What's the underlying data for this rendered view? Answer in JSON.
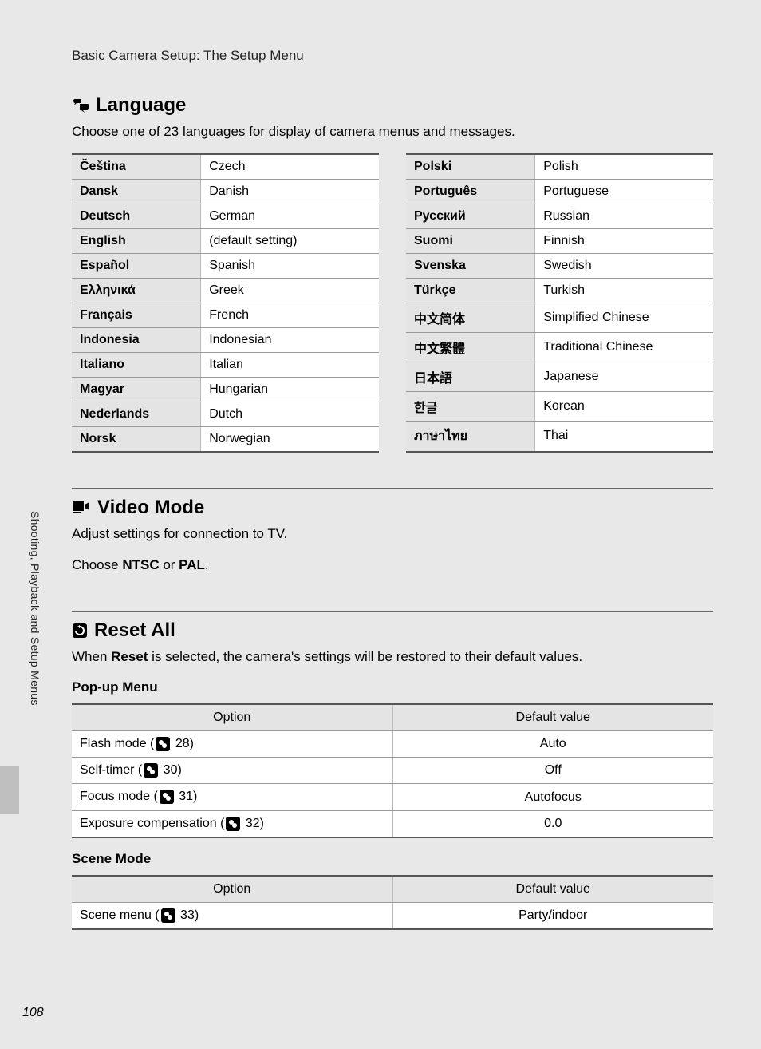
{
  "breadcrumb": "Basic Camera Setup: The Setup Menu",
  "side_label": "Shooting, Playback and Setup Menus",
  "page_number": "108",
  "language": {
    "heading": "Language",
    "desc": "Choose one of 23 languages for display of camera menus and messages.",
    "left": [
      {
        "native": "Čeština",
        "english": "Czech"
      },
      {
        "native": "Dansk",
        "english": "Danish"
      },
      {
        "native": "Deutsch",
        "english": "German"
      },
      {
        "native": "English",
        "english": "(default setting)"
      },
      {
        "native": "Español",
        "english": "Spanish"
      },
      {
        "native": "Ελληνικά",
        "english": "Greek"
      },
      {
        "native": "Français",
        "english": "French"
      },
      {
        "native": "Indonesia",
        "english": "Indonesian"
      },
      {
        "native": "Italiano",
        "english": "Italian"
      },
      {
        "native": "Magyar",
        "english": "Hungarian"
      },
      {
        "native": "Nederlands",
        "english": "Dutch"
      },
      {
        "native": "Norsk",
        "english": "Norwegian"
      }
    ],
    "right": [
      {
        "native": "Polski",
        "english": "Polish"
      },
      {
        "native": "Português",
        "english": "Portuguese"
      },
      {
        "native": "Русский",
        "english": "Russian"
      },
      {
        "native": "Suomi",
        "english": "Finnish"
      },
      {
        "native": "Svenska",
        "english": "Swedish"
      },
      {
        "native": "Türkçe",
        "english": "Turkish"
      },
      {
        "native": "中文简体",
        "english": "Simplified Chinese"
      },
      {
        "native": "中文繁體",
        "english": "Traditional Chinese"
      },
      {
        "native": "日本語",
        "english": "Japanese"
      },
      {
        "native": "한글",
        "english": "Korean"
      },
      {
        "native": "ภาษาไทย",
        "english": "Thai"
      }
    ]
  },
  "video_mode": {
    "heading": "Video Mode",
    "line1": "Adjust settings for connection to TV.",
    "line2_pre": "Choose ",
    "opt1": "NTSC",
    "or": " or ",
    "opt2": "PAL",
    "period": "."
  },
  "reset_all": {
    "heading": "Reset All",
    "desc_pre": "When ",
    "desc_bold": "Reset",
    "desc_post": " is selected, the camera's settings will be restored to their default values."
  },
  "popup_menu": {
    "title": "Pop-up Menu",
    "col_option": "Option",
    "col_default": "Default value",
    "rows": [
      {
        "label": "Flash mode (",
        "ref": "28",
        "close": ")",
        "value": "Auto"
      },
      {
        "label": "Self-timer (",
        "ref": "30",
        "close": ")",
        "value": "Off"
      },
      {
        "label": "Focus mode (",
        "ref": "31",
        "close": ")",
        "value": "Autofocus"
      },
      {
        "label": "Exposure compensation (",
        "ref": "32",
        "close": ")",
        "value": "0.0"
      }
    ]
  },
  "scene_mode": {
    "title": "Scene Mode",
    "col_option": "Option",
    "col_default": "Default value",
    "rows": [
      {
        "label": "Scene menu (",
        "ref": "33",
        "close": ")",
        "value": "Party/indoor"
      }
    ]
  }
}
